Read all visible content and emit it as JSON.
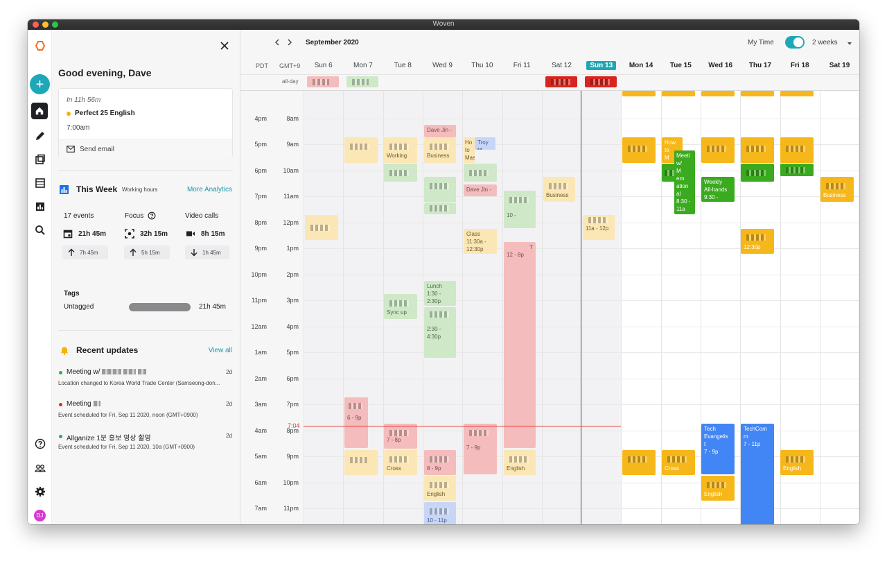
{
  "window": {
    "title": "Woven"
  },
  "panel": {
    "greeting": "Good evening, Dave",
    "next_event": {
      "when": "In 11h 56m",
      "title": "Perfect 25 English",
      "time": "7:00am",
      "action": "Send email"
    },
    "this_week": {
      "title": "This Week",
      "subtitle": "Working hours",
      "link": "More Analytics",
      "stats": [
        {
          "label": "17 events",
          "value": "21h 45m",
          "delta": "7h 45m",
          "direction": "up",
          "icon": "calendar-icon"
        },
        {
          "label": "Focus",
          "value": "32h 15m",
          "delta": "5h 15m",
          "direction": "up",
          "icon": "focus-icon"
        },
        {
          "label": "Video calls",
          "value": "8h 15m",
          "delta": "1h 45m",
          "direction": "down",
          "icon": "video-icon"
        }
      ],
      "tags_title": "Tags",
      "tag_label": "Untagged",
      "tag_value": "21h 45m",
      "tag_fraction": 1.0
    },
    "recent": {
      "title": "Recent updates",
      "link": "View all",
      "items": [
        {
          "title": "Meeting w/",
          "desc": "Location changed to Korea World Trade Center (Samseong-don...",
          "age": "2d",
          "color": "#34a853"
        },
        {
          "title": "Meeting",
          "desc": "Event scheduled for Fri, Sep 11 2020, noon (GMT+0900)",
          "age": "2d",
          "color": "#d93025"
        },
        {
          "title": "Allganize 1분 홍보 영상 촬영",
          "desc": "Event scheduled for Fri, Sep 11 2020, 10a (GMT+0900)",
          "age": "2d",
          "color": "#34a853"
        }
      ]
    }
  },
  "rail": {
    "avatar": "DJ"
  },
  "calendar": {
    "month": "September 2020",
    "my_time_label": "My Time",
    "range": "2 weeks",
    "tz_primary": "PDT",
    "tz_secondary": "GMT+9",
    "all_day_label": "all-day",
    "now_label": "7:04",
    "days": [
      {
        "label": "Sun 6",
        "state": "past"
      },
      {
        "label": "Mon 7",
        "state": "past"
      },
      {
        "label": "Tue 8",
        "state": "past"
      },
      {
        "label": "Wed 9",
        "state": "past"
      },
      {
        "label": "Thu 10",
        "state": "past"
      },
      {
        "label": "Fri 11",
        "state": "past"
      },
      {
        "label": "Sat 12",
        "state": "past"
      },
      {
        "label": "Sun 13",
        "state": "today"
      },
      {
        "label": "Mon 14",
        "state": "future"
      },
      {
        "label": "Tue 15",
        "state": "future"
      },
      {
        "label": "Wed 16",
        "state": "future"
      },
      {
        "label": "Thu 17",
        "state": "future"
      },
      {
        "label": "Fri 18",
        "state": "future"
      },
      {
        "label": "Sat 19",
        "state": "future"
      }
    ],
    "hours_pdt": [
      "4pm",
      "5pm",
      "6pm",
      "7pm",
      "8pm",
      "9pm",
      "10pm",
      "11pm",
      "12am",
      "1am",
      "2am",
      "3am",
      "4am",
      "5am",
      "6am",
      "7am"
    ],
    "hours_kst": [
      "8am",
      "9am",
      "10am",
      "11am",
      "12pm",
      "1pm",
      "2pm",
      "3pm",
      "4pm",
      "5pm",
      "6pm",
      "7pm",
      "8pm",
      "9pm",
      "10pm",
      "11pm"
    ],
    "events": {
      "dave_jin_1": "Dave Jin -",
      "dave_jin_2": "Dave Jin -",
      "troy": "Troy M",
      "ho_to_mast": [
        "Ho",
        "to",
        "Mast"
      ],
      "class": [
        "Class",
        "11:30a -",
        "12:30p"
      ],
      "fri_range": "12 - 8p",
      "fri_t": "T",
      "lunch": [
        "Lunch",
        "1:30 -",
        "2:30p"
      ],
      "wed_focus": [
        "2:30 -",
        "4:30p"
      ],
      "mon_range": "6 - 9p",
      "sun13_range": "11a - 12p",
      "thu_mini": "7 - 9p",
      "tue_mini": "7 - 8p",
      "wed_mini": "8 - 9p",
      "wed_english": "English",
      "wed_blue": "10 - 11p",
      "fri_english": "English",
      "how_to": [
        "How",
        "to",
        "M"
      ],
      "meeting_w": [
        "Meeti",
        "w/",
        "M",
        "nt",
        "ern",
        "ation",
        "al",
        "8:30 -",
        "11a"
      ],
      "weekly": [
        "Weekly",
        "All-hands",
        "9:30 -"
      ],
      "thu17_time": "12:30p",
      "business": "Business",
      "tech_evang": [
        "Tech",
        "Evangelis",
        "t",
        "7 - 9p"
      ],
      "techcom": [
        "TechCom",
        "m",
        "7 - 11p"
      ],
      "english_16": "English",
      "english_18": "English",
      "cross": "Cross",
      "working": "Working",
      "sync_up": "Sync up"
    }
  }
}
